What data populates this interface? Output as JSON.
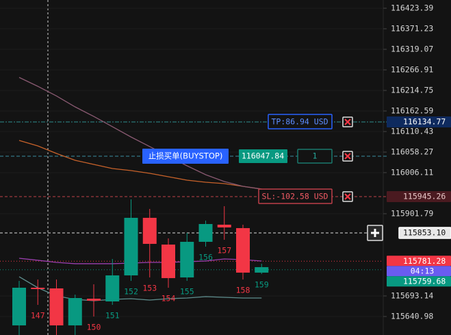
{
  "chart_data": {
    "type": "candlestick",
    "categories": [
      null,
      "147",
      null,
      null,
      "150",
      "151",
      "152",
      "153",
      "154",
      "155",
      "156",
      "157",
      "158",
      "159"
    ],
    "open": [
      115618.4,
      115714.0,
      115712.3,
      115618.4,
      115686.2,
      115679.2,
      115745.3,
      115891.4,
      115823.5,
      115740.1,
      115830.5,
      115874.0,
      115865.3,
      115752.3
    ],
    "high": [
      115731.4,
      115734.9,
      115734.9,
      115696.6,
      115722.7,
      115787.0,
      115938.3,
      115914.0,
      115839.2,
      115853.1,
      115884.4,
      115920.9,
      115874.0,
      115774.9
    ],
    "low": [
      115594.0,
      115670.5,
      115594.0,
      115594.0,
      115641.0,
      115670.5,
      115731.4,
      115740.1,
      115714.0,
      115731.4,
      115818.3,
      115835.7,
      115734.9,
      115748.8
    ],
    "close": [
      115714.0,
      115710.5,
      115618.4,
      115687.9,
      115681.0,
      115745.3,
      115891.4,
      115825.3,
      115738.4,
      115830.5,
      115875.7,
      115867.0,
      115752.3,
      115766.2
    ],
    "up_color": "#089981",
    "down_color": "#f23645",
    "series": [
      {
        "color": "#c8622a",
        "values": [
          116087.8,
          116073.9,
          116054.8,
          116037.4,
          116027.0,
          116016.5,
          116011.3,
          116004.4,
          115995.7,
          115987.0,
          115981.8,
          115978.3,
          115971.3,
          115964.4
        ]
      },
      {
        "color": "#8a5a72",
        "values": [
          116247.8,
          116225.2,
          116200.8,
          116173.0,
          116148.7,
          116122.6,
          116096.5,
          116072.2,
          116047.8,
          116023.5,
          116000.9,
          115983.5,
          115971.3,
          115964.4
        ]
      },
      {
        "color": "#9c3fb0",
        "values": [
          115788.8,
          115783.6,
          115778.3,
          115774.9,
          115774.9,
          115774.9,
          115776.6,
          115778.3,
          115778.3,
          115780.1,
          115781.8,
          115787.0,
          115785.3,
          115781.8
        ]
      },
      {
        "color": "#5f8f8f",
        "values": [
          115741.8,
          115714.0,
          115693.1,
          115684.4,
          115681.0,
          115684.4,
          115686.2,
          115682.7,
          115686.2,
          115687.9,
          115691.4,
          115689.6,
          115687.9,
          115687.9
        ]
      }
    ],
    "ylim": [
      115594.0,
      116444.25
    ],
    "yticks": [
      116423.39,
      116371.23,
      116319.07,
      116266.91,
      116214.75,
      116162.59,
      116110.43,
      116058.27,
      116006.11,
      115901.79,
      115693.14,
      115640.98
    ],
    "grid": true,
    "levels": {
      "tp": {
        "value": 116134.77,
        "label": "116134.77",
        "text": "TP:86.94 USD"
      },
      "entry": {
        "value": 116047.84,
        "label": "116047.84",
        "text": "止损买单(BUYSTOP)",
        "quantity": 1
      },
      "sl": {
        "value": 115945.26,
        "label": "115945.26",
        "text": "SL:-102.58 USD"
      },
      "cursor": {
        "value": 115853.1,
        "label": "115853.10"
      },
      "ask": {
        "value": 115781.28,
        "label": "115781.28"
      },
      "bid": {
        "value": 115759.68,
        "label": "115759.68",
        "countdown": "04:13"
      }
    }
  }
}
